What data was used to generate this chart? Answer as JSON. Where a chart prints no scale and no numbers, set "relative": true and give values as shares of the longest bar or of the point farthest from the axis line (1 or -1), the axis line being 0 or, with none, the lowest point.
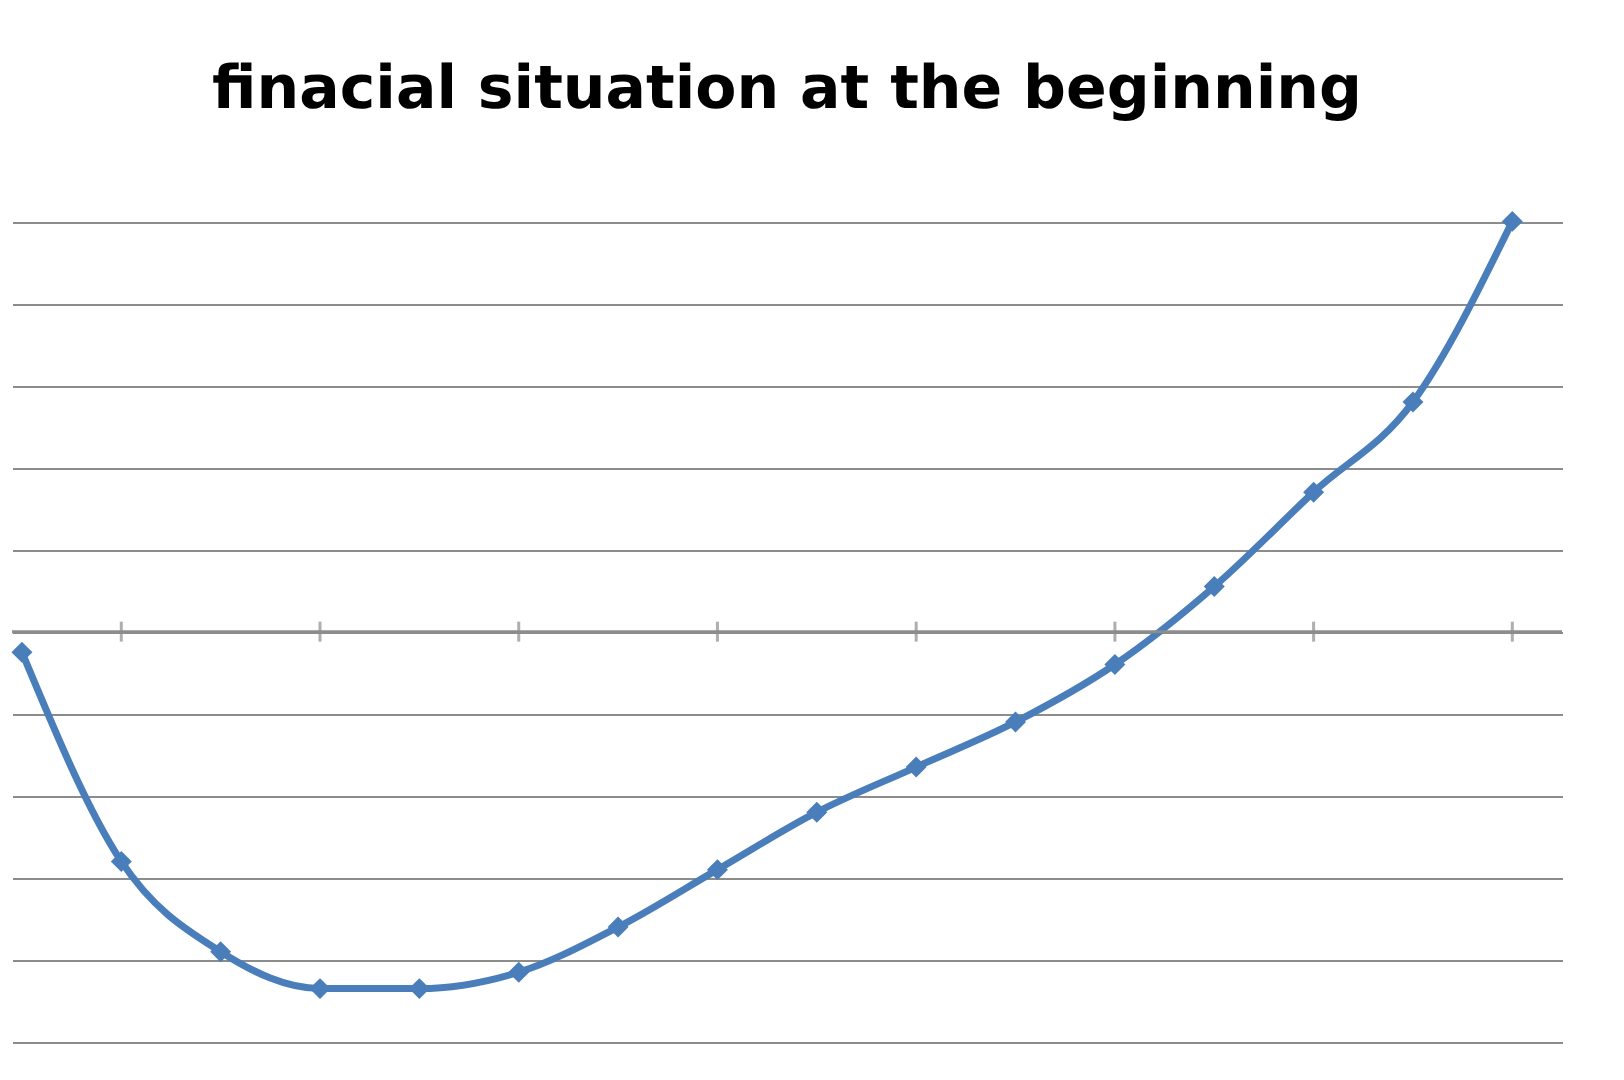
{
  "chart_data": {
    "type": "line",
    "title": "finacial situation at the beginning",
    "relative": true,
    "categories": [
      null,
      null,
      null,
      null,
      null,
      null,
      null,
      null,
      null,
      null,
      null,
      null,
      null,
      null,
      null,
      null
    ],
    "series": [
      {
        "color": "#4a7ebb",
        "values": [
          -0.05,
          -0.56,
          -0.78,
          -0.87,
          -0.87,
          -0.83,
          -0.72,
          -0.58,
          -0.44,
          -0.33,
          -0.22,
          -0.08,
          0.11,
          0.34,
          0.56,
          1
        ]
      }
    ],
    "grid": "y",
    "marker": "diamond",
    "line_style": "solid",
    "tick_labels": false
  }
}
